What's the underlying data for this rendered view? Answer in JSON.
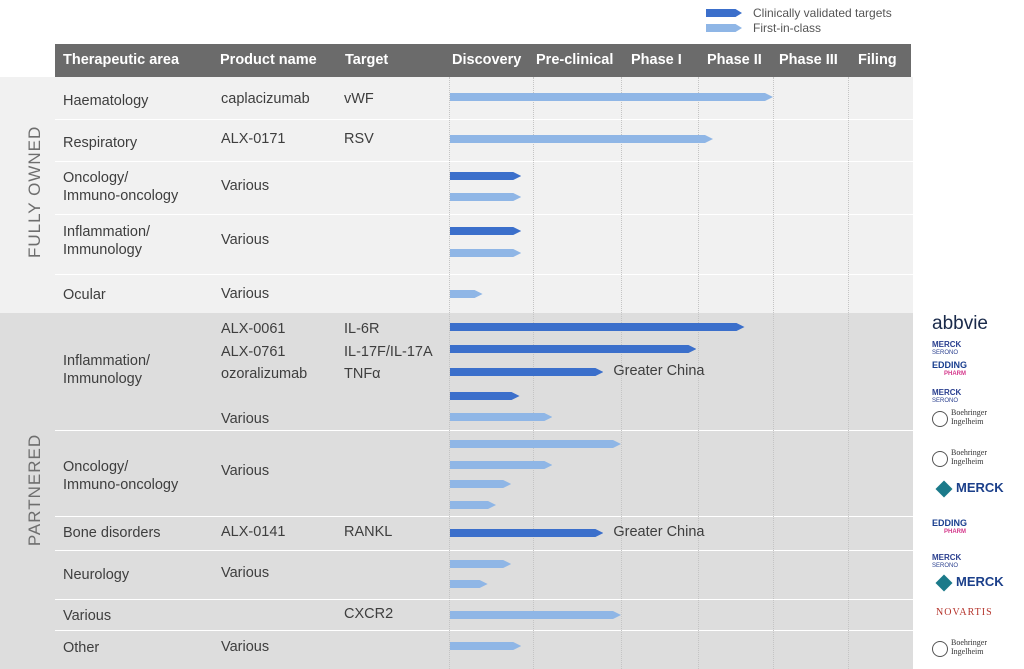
{
  "legend": [
    {
      "label": "Clinically validated targets",
      "color": "#3b6fcb"
    },
    {
      "label": "First-in-class",
      "color": "#8fb6e6"
    }
  ],
  "header": {
    "therapeutic_area": "Therapeutic area",
    "product_name": "Product name",
    "target": "Target",
    "phases": [
      "Discovery",
      "Pre-clinical",
      "Phase I",
      "Phase II",
      "Phase III",
      "Filing"
    ]
  },
  "groups": [
    {
      "label": "FULLY OWNED"
    },
    {
      "label": "PARTNERED"
    }
  ],
  "rows": [
    {
      "area": "Haematology",
      "product": "caplacizumab",
      "target": "vWF"
    },
    {
      "area": "Respiratory",
      "product": "ALX-0171",
      "target": "RSV"
    },
    {
      "area": "Oncology/\nImmuno-oncology",
      "product": "Various",
      "target": ""
    },
    {
      "area": "Inflammation/\nImmunology",
      "product": "Various",
      "target": ""
    },
    {
      "area": "Ocular",
      "product": "Various",
      "target": ""
    },
    {
      "area": "Inflammation/\nImmunology",
      "product": "ALX-0061\nALX-0761\nozoralizumab\n\nVarious",
      "target": "IL-6R\nIL-17F/IL-17A\nTNFα"
    },
    {
      "area": "Oncology/\nImmuno-oncology",
      "product": "Various",
      "target": ""
    },
    {
      "area": "Bone disorders",
      "product": "ALX-0141",
      "target": "RANKL"
    },
    {
      "area": "Neurology",
      "product": "Various",
      "target": ""
    },
    {
      "area": "Various",
      "product": "",
      "target": "CXCR2"
    },
    {
      "area": "Other",
      "product": "Various",
      "target": ""
    }
  ],
  "chart_data": {
    "type": "bar",
    "orientation": "horizontal",
    "x_stages": [
      "Discovery",
      "Pre-clinical",
      "Phase I",
      "Phase II",
      "Phase III",
      "Filing"
    ],
    "x_unit": "pipeline stages reached (0 = start of Discovery)",
    "series": [
      {
        "name": "Clinically validated targets",
        "color": "#3b6fcb"
      },
      {
        "name": "First-in-class",
        "color": "#8fb6e6"
      }
    ],
    "programs": [
      {
        "row": 0,
        "series": 1,
        "progress": 4.0
      },
      {
        "row": 1,
        "series": 1,
        "progress": 3.2
      },
      {
        "row": 2,
        "series": 0,
        "progress": 0.86
      },
      {
        "row": 2,
        "series": 1,
        "progress": 0.86
      },
      {
        "row": 3,
        "series": 0,
        "progress": 0.86
      },
      {
        "row": 3,
        "series": 1,
        "progress": 0.86
      },
      {
        "row": 4,
        "series": 1,
        "progress": 0.4
      },
      {
        "row": 5,
        "series": 0,
        "progress": 3.62,
        "partner": "abbvie"
      },
      {
        "row": 5,
        "series": 0,
        "progress": 2.98,
        "partner": "MERCK SERONO"
      },
      {
        "row": 5,
        "series": 0,
        "progress": 1.8,
        "note": "Greater China",
        "partner": "EDDINGPHARM"
      },
      {
        "row": 5,
        "series": 0,
        "progress": 0.84,
        "partner": "MERCK SERONO"
      },
      {
        "row": 5,
        "series": 1,
        "progress": 1.22,
        "partner": "Boehringer Ingelheim"
      },
      {
        "row": 6,
        "series": 1,
        "progress": 2.0,
        "partner": "Boehringer Ingelheim"
      },
      {
        "row": 6,
        "series": 1,
        "progress": 1.22
      },
      {
        "row": 6,
        "series": 1,
        "progress": 0.74,
        "partner": "MERCK"
      },
      {
        "row": 6,
        "series": 1,
        "progress": 0.56
      },
      {
        "row": 7,
        "series": 0,
        "progress": 1.8,
        "note": "Greater China",
        "partner": "EDDINGPHARM"
      },
      {
        "row": 8,
        "series": 1,
        "progress": 0.74,
        "partner": "MERCK SERONO"
      },
      {
        "row": 8,
        "series": 1,
        "progress": 0.46,
        "partner": "MERCK"
      },
      {
        "row": 9,
        "series": 1,
        "progress": 2.0,
        "partner": "NOVARTIS"
      },
      {
        "row": 10,
        "series": 1,
        "progress": 0.86,
        "partner": "Boehringer Ingelheim"
      }
    ]
  },
  "partners": {
    "abbvie": "abbvie",
    "merck_serono": "MERCK",
    "merck_serono_sub": "SERONO",
    "edding": "EDDING",
    "edding_sub": "PHARM",
    "bi_line1": "Boehringer",
    "bi_line2": "Ingelheim",
    "merck": "MERCK",
    "novartis": "NOVARTIS"
  }
}
